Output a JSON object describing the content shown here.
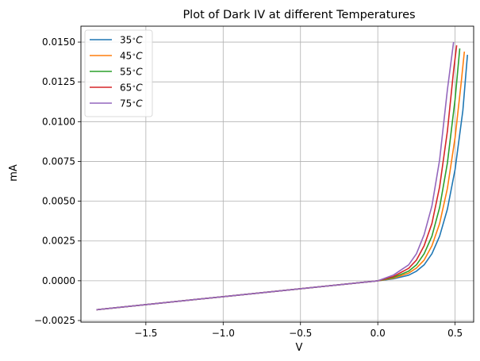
{
  "chart_data": {
    "type": "line",
    "title": "Plot of Dark IV at different Temperatures",
    "xlabel": "V",
    "ylabel": "mA",
    "xlim": [
      -1.92,
      0.62
    ],
    "ylim": [
      -0.0026,
      0.016
    ],
    "xticks": [
      -1.5,
      -1.0,
      -0.5,
      0.0,
      0.5
    ],
    "xtick_labels": [
      "−1.5",
      "−1.0",
      "−0.5",
      "0.0",
      "0.5"
    ],
    "yticks": [
      -0.0025,
      0.0,
      0.0025,
      0.005,
      0.0075,
      0.01,
      0.0125,
      0.015
    ],
    "ytick_labels": [
      "−0.0025",
      "0.0000",
      "0.0025",
      "0.0050",
      "0.0075",
      "0.0100",
      "0.0125",
      "0.0150"
    ],
    "grid": true,
    "legend_position": "top-left",
    "series": [
      {
        "name": "35°C",
        "label_main": "35",
        "label_unit": "C",
        "color": "#1f77b4",
        "x": [
          -1.82,
          -1.5,
          -1.0,
          -0.5,
          0.0,
          0.1,
          0.2,
          0.25,
          0.3,
          0.35,
          0.4,
          0.45,
          0.5,
          0.55,
          0.58
        ],
        "y": [
          -0.00182,
          -0.0015,
          -0.001,
          -0.0005,
          0.0,
          0.00012,
          0.00035,
          0.0006,
          0.001,
          0.0017,
          0.0028,
          0.0045,
          0.007,
          0.0107,
          0.0142
        ]
      },
      {
        "name": "45°C",
        "label_main": "45",
        "label_unit": "C",
        "color": "#ff7f0e",
        "x": [
          -1.82,
          -1.5,
          -1.0,
          -0.5,
          0.0,
          0.1,
          0.2,
          0.25,
          0.3,
          0.35,
          0.4,
          0.45,
          0.5,
          0.54,
          0.56
        ],
        "y": [
          -0.00182,
          -0.0015,
          -0.001,
          -0.0005,
          0.0,
          0.00016,
          0.00048,
          0.0008,
          0.0013,
          0.0022,
          0.0036,
          0.0058,
          0.009,
          0.0125,
          0.0144
        ]
      },
      {
        "name": "55°C",
        "label_main": "55",
        "label_unit": "C",
        "color": "#2ca02c",
        "x": [
          -1.82,
          -1.5,
          -1.0,
          -0.5,
          0.0,
          0.1,
          0.2,
          0.25,
          0.3,
          0.35,
          0.4,
          0.45,
          0.5,
          0.53
        ],
        "y": [
          -0.00182,
          -0.0015,
          -0.001,
          -0.0005,
          0.0,
          0.0002,
          0.0006,
          0.001,
          0.0017,
          0.0028,
          0.0046,
          0.0074,
          0.0114,
          0.0146
        ]
      },
      {
        "name": "65°C",
        "label_main": "65",
        "label_unit": "C",
        "color": "#d62728",
        "x": [
          -1.82,
          -1.5,
          -1.0,
          -0.5,
          0.0,
          0.1,
          0.2,
          0.25,
          0.3,
          0.35,
          0.4,
          0.45,
          0.49,
          0.51
        ],
        "y": [
          -0.00182,
          -0.0015,
          -0.001,
          -0.0005,
          0.0,
          0.00026,
          0.00078,
          0.0013,
          0.0022,
          0.0036,
          0.0059,
          0.0094,
          0.0132,
          0.0148
        ]
      },
      {
        "name": "75°C",
        "label_main": "75",
        "label_unit": "C",
        "color": "#9467bd",
        "x": [
          -1.82,
          -1.5,
          -1.0,
          -0.5,
          0.0,
          0.1,
          0.2,
          0.25,
          0.3,
          0.35,
          0.4,
          0.45,
          0.49
        ],
        "y": [
          -0.00182,
          -0.0015,
          -0.001,
          -0.0005,
          0.0,
          0.00035,
          0.001,
          0.0017,
          0.0029,
          0.0047,
          0.0076,
          0.012,
          0.015
        ]
      }
    ]
  }
}
